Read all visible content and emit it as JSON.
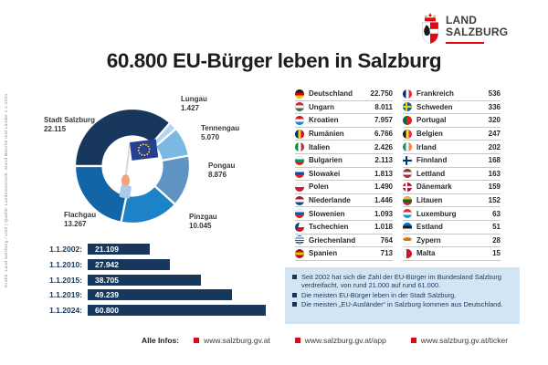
{
  "logo": {
    "line1": "LAND",
    "line2": "SALZBURG"
  },
  "title": "60.800 EU-Bürger leben in Salzburg",
  "side_caption": "Grafik: Land Salzburg / LMZ | Quelle: Landesstatistik, Stand Bezirke und Länder 1.1.2024",
  "colors": {
    "navy": "#17375c",
    "brand_red": "#e30613",
    "info_box_bg": "#d2e5f4",
    "table_divider": "#c6c9cc"
  },
  "chart_data": [
    {
      "type": "pie",
      "subtype": "donut",
      "start_angle_deg": 270,
      "direction": "clockwise",
      "center_icon": "eu-flag-in-hand",
      "segments": [
        {
          "label": "Stadt Salzburg",
          "value": 22115,
          "value_label": "22.115",
          "color": "#17375c"
        },
        {
          "label": "Lungau",
          "value": 1427,
          "value_label": "1.427",
          "color": "#b3d6ee"
        },
        {
          "label": "Tennengau",
          "value": 5070,
          "value_label": "5.070",
          "color": "#7cb9e2"
        },
        {
          "label": "Pongau",
          "value": 8876,
          "value_label": "8.876",
          "color": "#5f94c2"
        },
        {
          "label": "Pinzgau",
          "value": 10045,
          "value_label": "10.045",
          "color": "#1e82c6"
        },
        {
          "label": "Flachgau",
          "value": 13267,
          "value_label": "13.267",
          "color": "#1266a8"
        }
      ]
    },
    {
      "type": "bar",
      "orientation": "horizontal",
      "categories": [
        "1.1.2002:",
        "1.1.2010:",
        "1.1.2015:",
        "1.1.2019:",
        "1.1.2024:"
      ],
      "values": [
        21109,
        27942,
        38705,
        49239,
        60800
      ],
      "value_labels": [
        "21.109",
        "27.942",
        "38.705",
        "49.239",
        "60.800"
      ],
      "bar_color": "#17375c",
      "xlim": [
        0,
        60800
      ]
    }
  ],
  "country_table": {
    "rows_left": [
      {
        "name": "Deutschland",
        "value": "22.750",
        "flag": {
          "kind": "h3",
          "colors": [
            "#1a1a1a",
            "#dd0000",
            "#ffce00"
          ]
        }
      },
      {
        "name": "Ungarn",
        "value": "8.011",
        "flag": {
          "kind": "h3",
          "colors": [
            "#cd2a3e",
            "#ffffff",
            "#436f4d"
          ]
        }
      },
      {
        "name": "Kroatien",
        "value": "7.957",
        "flag": {
          "kind": "h3",
          "colors": [
            "#e8112d",
            "#ffffff",
            "#0093dd"
          ]
        }
      },
      {
        "name": "Rumänien",
        "value": "6.766",
        "flag": {
          "kind": "v3",
          "colors": [
            "#002b7f",
            "#fcd116",
            "#ce1126"
          ]
        }
      },
      {
        "name": "Italien",
        "value": "2.426",
        "flag": {
          "kind": "v3",
          "colors": [
            "#009246",
            "#ffffff",
            "#ce2b37"
          ]
        }
      },
      {
        "name": "Bulgarien",
        "value": "2.113",
        "flag": {
          "kind": "h3",
          "colors": [
            "#ffffff",
            "#00966e",
            "#d62612"
          ]
        }
      },
      {
        "name": "Slowakei",
        "value": "1.813",
        "flag": {
          "kind": "h3",
          "colors": [
            "#ffffff",
            "#0b4ea2",
            "#ee1c25"
          ]
        }
      },
      {
        "name": "Polen",
        "value": "1.490",
        "flag": {
          "kind": "h2",
          "colors": [
            "#ffffff",
            "#dc143c"
          ]
        }
      },
      {
        "name": "Niederlande",
        "value": "1.446",
        "flag": {
          "kind": "h3",
          "colors": [
            "#ae1c28",
            "#ffffff",
            "#21468b"
          ]
        }
      },
      {
        "name": "Slowenien",
        "value": "1.093",
        "flag": {
          "kind": "h3",
          "colors": [
            "#ffffff",
            "#005da4",
            "#ed1c24"
          ]
        }
      },
      {
        "name": "Tschechien",
        "value": "1.018",
        "flag": {
          "kind": "czech",
          "colors": [
            "#ffffff",
            "#d7141a",
            "#11457e"
          ]
        }
      },
      {
        "name": "Griechenland",
        "value": "764",
        "flag": {
          "kind": "stripes",
          "colors": [
            "#0d5eaf",
            "#ffffff"
          ]
        }
      },
      {
        "name": "Spanien",
        "value": "713",
        "flag": {
          "kind": "h3",
          "colors": [
            "#aa151b",
            "#f1bf00",
            "#aa151b"
          ]
        }
      }
    ],
    "rows_right": [
      {
        "name": "Frankreich",
        "value": "536",
        "flag": {
          "kind": "v3",
          "colors": [
            "#002395",
            "#ffffff",
            "#ed2939"
          ]
        }
      },
      {
        "name": "Schweden",
        "value": "336",
        "flag": {
          "kind": "cross",
          "colors": [
            "#006aa7",
            "#fecc00"
          ]
        }
      },
      {
        "name": "Portugal",
        "value": "320",
        "flag": {
          "kind": "v2",
          "colors": [
            "#046a38",
            "#da291c"
          ]
        }
      },
      {
        "name": "Belgien",
        "value": "247",
        "flag": {
          "kind": "v3",
          "colors": [
            "#1a1a1a",
            "#fdda24",
            "#ef3340"
          ]
        }
      },
      {
        "name": "Irland",
        "value": "202",
        "flag": {
          "kind": "v3",
          "colors": [
            "#169b62",
            "#ffffff",
            "#ff883e"
          ]
        }
      },
      {
        "name": "Finnland",
        "value": "168",
        "flag": {
          "kind": "cross",
          "colors": [
            "#ffffff",
            "#003580"
          ]
        }
      },
      {
        "name": "Lettland",
        "value": "163",
        "flag": {
          "kind": "h3",
          "colors": [
            "#9e3039",
            "#ffffff",
            "#9e3039"
          ]
        }
      },
      {
        "name": "Dänemark",
        "value": "159",
        "flag": {
          "kind": "cross",
          "colors": [
            "#c8102e",
            "#ffffff"
          ]
        }
      },
      {
        "name": "Litauen",
        "value": "152",
        "flag": {
          "kind": "h3",
          "colors": [
            "#fdb913",
            "#006a44",
            "#c1272d"
          ]
        }
      },
      {
        "name": "Luxemburg",
        "value": "63",
        "flag": {
          "kind": "h3",
          "colors": [
            "#ed2939",
            "#ffffff",
            "#00a2e1"
          ]
        }
      },
      {
        "name": "Estland",
        "value": "51",
        "flag": {
          "kind": "h3",
          "colors": [
            "#0072ce",
            "#1a1a1a",
            "#ffffff"
          ]
        }
      },
      {
        "name": "Zypern",
        "value": "28",
        "flag": {
          "kind": "cyprus",
          "colors": [
            "#ffffff",
            "#d57800"
          ]
        }
      },
      {
        "name": "Malta",
        "value": "15",
        "flag": {
          "kind": "v2",
          "colors": [
            "#ffffff",
            "#cf142b"
          ]
        }
      }
    ]
  },
  "info_box": {
    "items": [
      "Seit 2002 hat sich die Zahl der EU-Bürger im Bundesland Salzburg verdreifacht, von rund 21.000 auf rund 61.000.",
      "Die meisten EU-Bürger leben in der Stadt Salzburg.",
      "Die meisten „EU-Ausländer“ in Salzburg kommen aus Deutschland."
    ]
  },
  "footer": {
    "label": "Alle Infos:",
    "links": [
      "www.salzburg.gv.at",
      "www.salzburg.gv.at/app",
      "www.salzburg.gv.at/ticker"
    ]
  }
}
